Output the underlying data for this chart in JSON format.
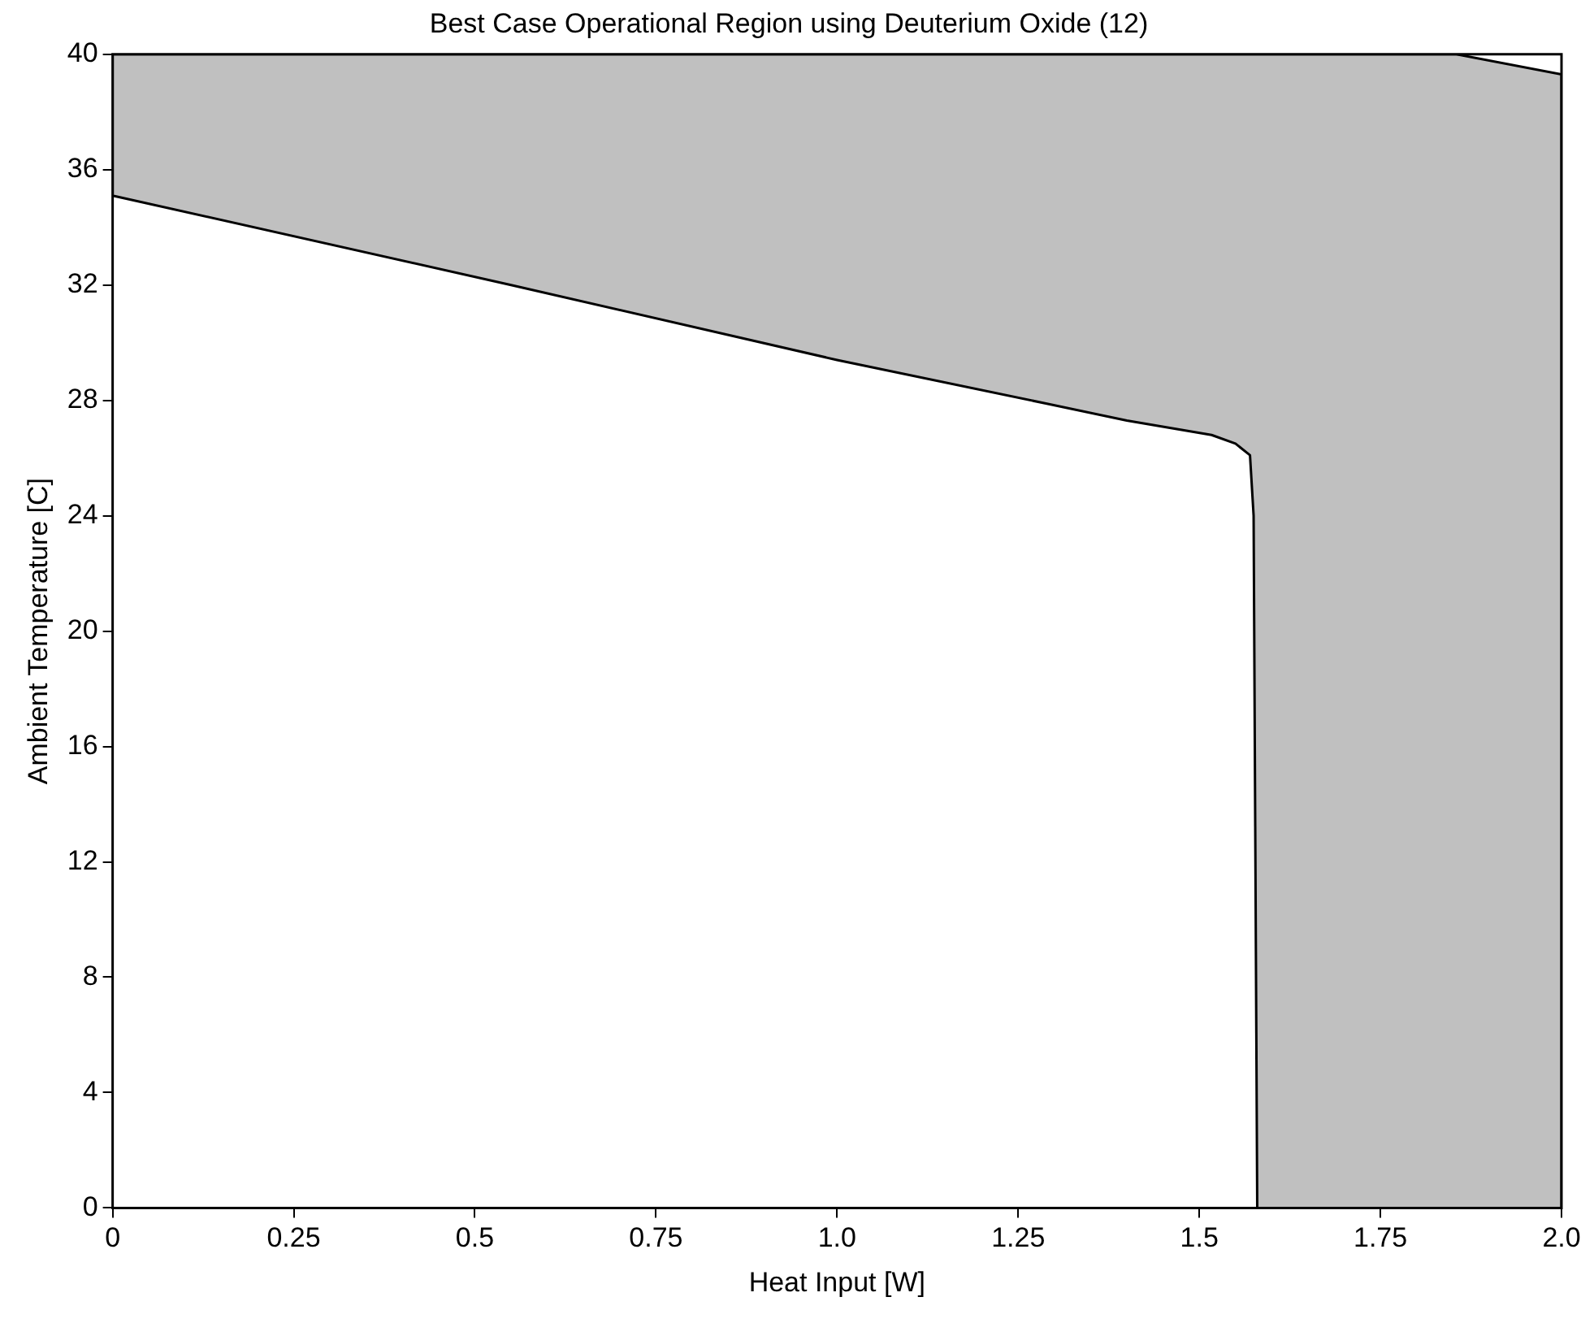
{
  "chart_data": {
    "type": "area",
    "title": "Best Case Operational Region using Deuterium Oxide (12)",
    "xlabel": "Heat Input [W]",
    "ylabel": "Ambient Temperature [C]",
    "series": [
      {
        "color": "#c0c0c0",
        "x": [
          0,
          0,
          0.55,
          1.0,
          1.287,
          1.4,
          1.517,
          1.55,
          1.57,
          1.575,
          1.58,
          2.0,
          2.0,
          1.855,
          0
        ],
        "values": [
          40,
          35.1,
          32.0,
          29.4,
          27.9,
          27.3,
          26.8,
          26.5,
          26.1,
          24,
          0,
          0,
          39.3,
          40,
          40
        ]
      }
    ],
    "xlim": [
      0,
      2.0
    ],
    "ylim": [
      0,
      40
    ],
    "xticks": [
      0,
      0.25,
      0.5,
      0.75,
      {
        "value": 1,
        "label": "1.0"
      },
      1.25,
      1.5,
      1.75,
      {
        "value": 2,
        "label": "2.0"
      }
    ],
    "yticks": [
      0,
      4,
      8,
      12,
      16,
      20,
      24,
      28,
      32,
      36,
      40
    ],
    "grid": false,
    "legend": false
  }
}
